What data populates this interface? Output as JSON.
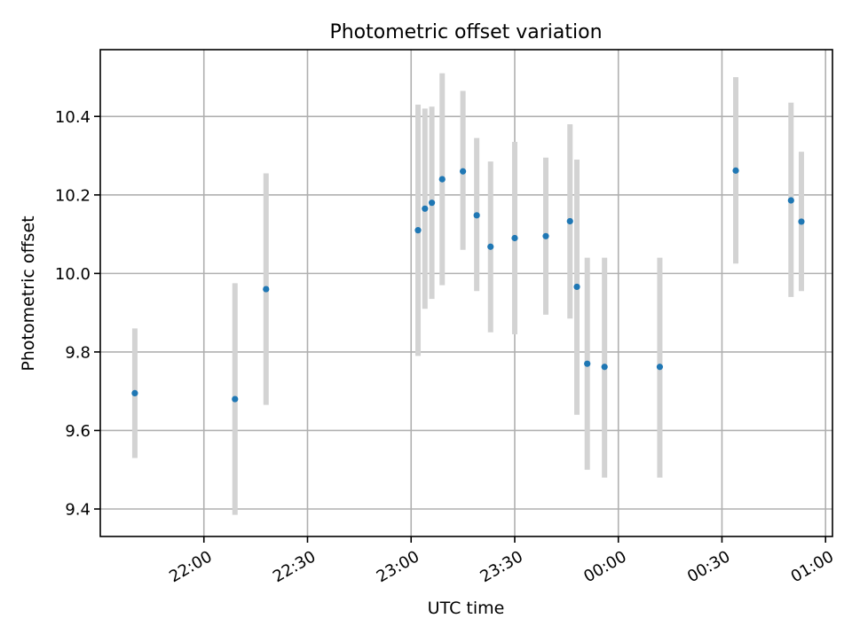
{
  "chart_data": {
    "type": "scatter",
    "title": "Photometric offset variation",
    "xlabel": "UTC time",
    "ylabel": "Photometric offset",
    "x_axis": "time",
    "x_range": [
      "21:30",
      "01:02"
    ],
    "ylim": [
      9.33,
      10.57
    ],
    "grid": true,
    "legend": "none",
    "x_ticks": [
      "22:00",
      "22:30",
      "23:00",
      "23:30",
      "00:00",
      "00:30",
      "01:00"
    ],
    "y_ticks": [
      "9.4",
      "9.6",
      "9.8",
      "10.0",
      "10.2",
      "10.4"
    ],
    "colors": {
      "point": "#1f77b4",
      "errorbar": "#d3d3d3",
      "grid": "#b0b0b0"
    },
    "points": [
      {
        "time": "21:40",
        "y": 9.695,
        "err_low": 9.53,
        "err_high": 9.86
      },
      {
        "time": "22:09",
        "y": 9.68,
        "err_low": 9.385,
        "err_high": 9.975
      },
      {
        "time": "22:18",
        "y": 9.96,
        "err_low": 9.665,
        "err_high": 10.255
      },
      {
        "time": "23:02",
        "y": 10.11,
        "err_low": 9.79,
        "err_high": 10.43
      },
      {
        "time": "23:04",
        "y": 10.165,
        "err_low": 9.91,
        "err_high": 10.42
      },
      {
        "time": "23:06",
        "y": 10.18,
        "err_low": 9.935,
        "err_high": 10.425
      },
      {
        "time": "23:09",
        "y": 10.24,
        "err_low": 9.97,
        "err_high": 10.51
      },
      {
        "time": "23:15",
        "y": 10.26,
        "err_low": 10.06,
        "err_high": 10.465
      },
      {
        "time": "23:19",
        "y": 10.148,
        "err_low": 9.955,
        "err_high": 10.345
      },
      {
        "time": "23:23",
        "y": 10.068,
        "err_low": 9.85,
        "err_high": 10.285
      },
      {
        "time": "23:30",
        "y": 10.09,
        "err_low": 9.845,
        "err_high": 10.335
      },
      {
        "time": "23:39",
        "y": 10.095,
        "err_low": 9.895,
        "err_high": 10.295
      },
      {
        "time": "23:46",
        "y": 10.133,
        "err_low": 9.885,
        "err_high": 10.38
      },
      {
        "time": "23:48",
        "y": 9.966,
        "err_low": 9.64,
        "err_high": 10.29
      },
      {
        "time": "23:51",
        "y": 9.77,
        "err_low": 9.5,
        "err_high": 10.04
      },
      {
        "time": "23:56",
        "y": 9.762,
        "err_low": 9.48,
        "err_high": 10.04
      },
      {
        "time": "00:12",
        "y": 9.762,
        "err_low": 9.48,
        "err_high": 10.04
      },
      {
        "time": "00:34",
        "y": 10.262,
        "err_low": 10.025,
        "err_high": 10.5
      },
      {
        "time": "00:50",
        "y": 10.186,
        "err_low": 9.94,
        "err_high": 10.435
      },
      {
        "time": "00:53",
        "y": 10.132,
        "err_low": 9.955,
        "err_high": 10.31
      }
    ]
  }
}
